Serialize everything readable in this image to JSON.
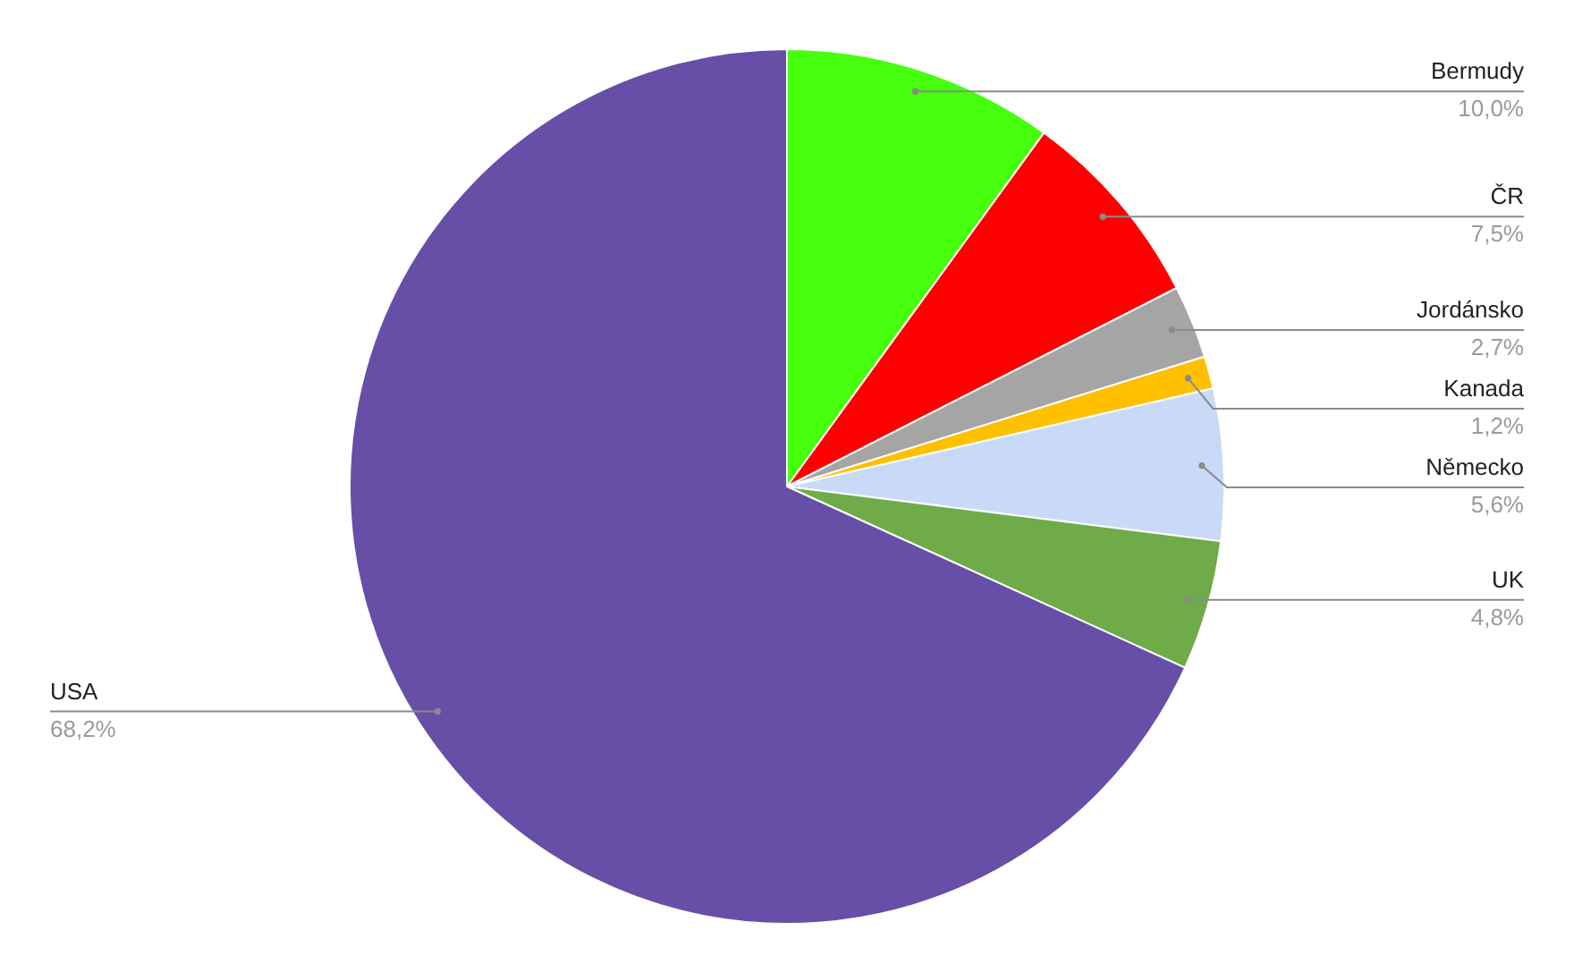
{
  "chart_data": {
    "type": "pie",
    "categories": [
      "Bermudy",
      "ČR",
      "Jordánsko",
      "Kanada",
      "Německo",
      "UK",
      "USA"
    ],
    "values": [
      10.0,
      7.5,
      2.7,
      1.2,
      5.6,
      4.8,
      68.2
    ],
    "colors": [
      "#46ff0c",
      "#ff0000",
      "#a5a5a5",
      "#ffc000",
      "#c9daf8",
      "#6fab48",
      "#674ea7"
    ],
    "value_labels": [
      "10,0%",
      "7,5%",
      "2,7%",
      "1,2%",
      "5,6%",
      "4,8%",
      "68,2%"
    ],
    "legend": false
  }
}
